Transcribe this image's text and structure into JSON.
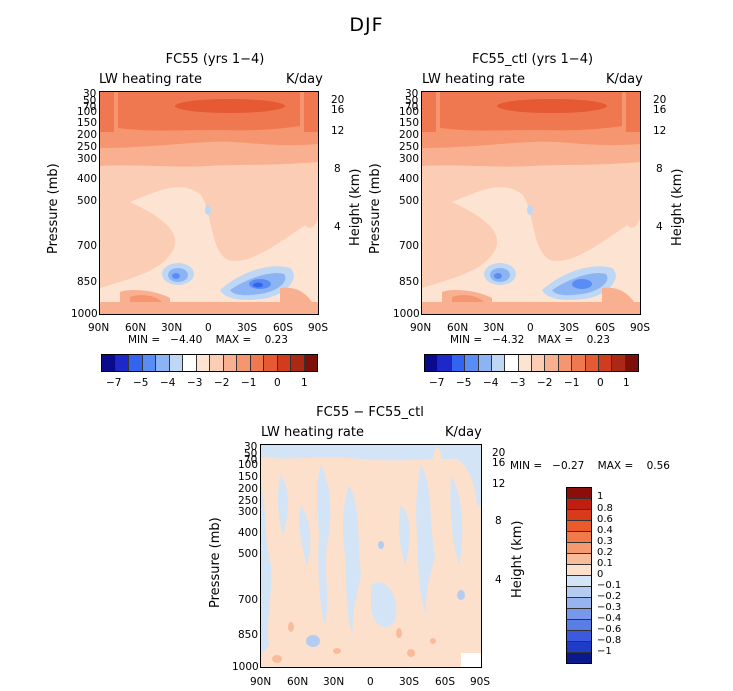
{
  "figure": {
    "title": "DJF"
  },
  "colors": {
    "hbar": [
      "#0a0a8c",
      "#1e28c8",
      "#3264f0",
      "#5a8cf5",
      "#8cb4f5",
      "#bed7f5",
      "#ffffff",
      "#fde4d2",
      "#fbcdb4",
      "#f8b090",
      "#f59670",
      "#f07850",
      "#e55a32",
      "#d23c1e",
      "#aa2814",
      "#7d0f0a"
    ],
    "vbar": [
      "#8b0e0a",
      "#c01e10",
      "#d83a1c",
      "#ea5a2a",
      "#f27a48",
      "#f59a70",
      "#f9bc9a",
      "#fde0cc",
      "#d2e4f6",
      "#b4ccf2",
      "#96b4f0",
      "#7898ec",
      "#5a7ce6",
      "#3c5ae0",
      "#1e3cc8",
      "#0a1a8c"
    ]
  },
  "panels": [
    {
      "title": "FC55 (yrs 1−4)",
      "label_left": "LW heating rate",
      "label_right": "K/day",
      "ylabel": "Pressure (mb)",
      "y2label": "Height (km)",
      "minmax": "MIN =   −4.40    MAX =    0.23"
    },
    {
      "title": "FC55_ctl (yrs 1−4)",
      "label_left": "LW heating rate",
      "label_right": "K/day",
      "ylabel": "Pressure (mb)",
      "y2label": "Height (km)",
      "minmax": "MIN =   −4.32    MAX =    0.23"
    },
    {
      "title": "FC55 − FC55_ctl",
      "label_left": "LW heating rate",
      "label_right": "K/day",
      "ylabel": "Pressure (mb)",
      "y2label": "Height (km)",
      "minmax": "MIN =   −0.27    MAX =    0.56"
    }
  ],
  "chart_data": [
    {
      "type": "heatmap",
      "title": "FC55 (yrs 1−4)",
      "xlabel": "",
      "ylabel": "Pressure (mb)",
      "y2label": "Height (km)",
      "x_ticks": [
        "90N",
        "60N",
        "30N",
        "0",
        "30S",
        "60S",
        "90S"
      ],
      "y_ticks": [
        "30",
        "50",
        "70",
        "100",
        "150",
        "200",
        "250",
        "300",
        "400",
        "500",
        "700",
        "850",
        "1000"
      ],
      "y2_ticks": [
        "20",
        "16",
        "12",
        "8",
        "4"
      ],
      "min": -4.4,
      "max": 0.23,
      "colorbar_labels": [
        "−7",
        "−5",
        "−4",
        "−3",
        "−2",
        "−1",
        "0",
        "1"
      ]
    },
    {
      "type": "heatmap",
      "title": "FC55_ctl (yrs 1−4)",
      "xlabel": "",
      "ylabel": "Pressure (mb)",
      "y2label": "Height (km)",
      "x_ticks": [
        "90N",
        "60N",
        "30N",
        "0",
        "30S",
        "60S",
        "90S"
      ],
      "y_ticks": [
        "30",
        "50",
        "70",
        "100",
        "150",
        "200",
        "250",
        "300",
        "400",
        "500",
        "700",
        "850",
        "1000"
      ],
      "y2_ticks": [
        "20",
        "16",
        "12",
        "8",
        "4"
      ],
      "min": -4.32,
      "max": 0.23,
      "colorbar_labels": [
        "−7",
        "−5",
        "−4",
        "−3",
        "−2",
        "−1",
        "0",
        "1"
      ]
    },
    {
      "type": "heatmap",
      "title": "FC55 − FC55_ctl",
      "xlabel": "",
      "ylabel": "Pressure (mb)",
      "y2label": "Height (km)",
      "x_ticks": [
        "90N",
        "60N",
        "30N",
        "0",
        "30S",
        "60S",
        "90S"
      ],
      "y_ticks": [
        "30",
        "50",
        "70",
        "100",
        "150",
        "200",
        "250",
        "300",
        "400",
        "500",
        "700",
        "850",
        "1000"
      ],
      "y2_ticks": [
        "20",
        "16",
        "12",
        "8",
        "4"
      ],
      "min": -0.27,
      "max": 0.56,
      "colorbar_labels": [
        "1",
        "0.8",
        "0.6",
        "0.4",
        "0.3",
        "0.2",
        "0.1",
        "0",
        "−0.1",
        "−0.2",
        "−0.3",
        "−0.4",
        "−0.6",
        "−0.8",
        "−1"
      ]
    }
  ]
}
